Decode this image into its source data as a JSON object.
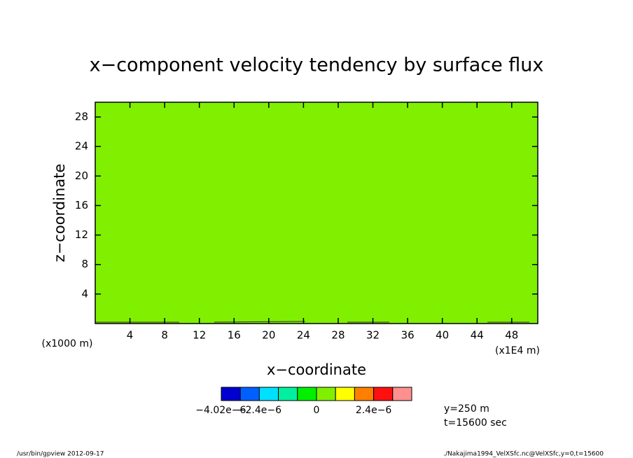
{
  "chart_data": {
    "type": "contour",
    "title": "x−component velocity tendency by surface flux",
    "x_label": "x−coordinate",
    "y_label": "z−coordinate",
    "x_unit": "(x1E4 m)",
    "y_unit": "(x1000 m)",
    "xlim": [
      0,
      51
    ],
    "xticks": [
      4,
      8,
      12,
      16,
      20,
      24,
      28,
      32,
      36,
      40,
      44,
      48
    ],
    "ylim": [
      0,
      30
    ],
    "yticks": [
      4,
      8,
      12,
      16,
      20,
      24,
      28
    ],
    "field_color": "#80f000",
    "colorbar": {
      "lim": [
        -4e-06,
        4e-06
      ],
      "colors": [
        "#0000d0",
        "#0060ff",
        "#00e0ff",
        "#00f0a0",
        "#00f000",
        "#80f000",
        "#ffff00",
        "#ff8000",
        "#ff1010",
        "#ff9090"
      ],
      "ticks": [
        {
          "value": -4.02e-06,
          "label": "−4.02e−6"
        },
        {
          "value": -2.4e-06,
          "label": "−2.4e−6"
        },
        {
          "value": 0,
          "label": "0"
        },
        {
          "value": 2.4e-06,
          "label": "2.4e−6"
        }
      ]
    },
    "annotations": [
      "y=250 m",
      "t=15600 sec"
    ],
    "footer_left": "/usr/bin/gpview   2012-09-17",
    "footer_right": "./Nakajima1994_VelXSfc.nc@VelXSfc,y=0,t=15600"
  }
}
